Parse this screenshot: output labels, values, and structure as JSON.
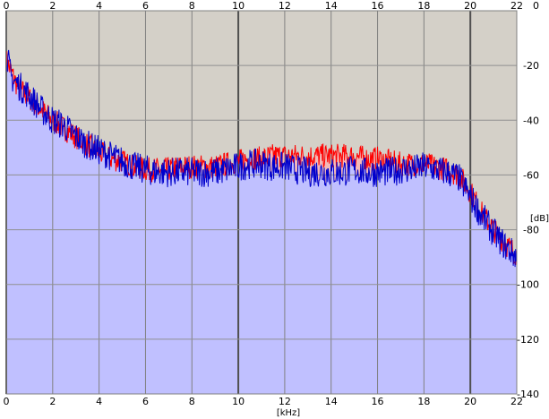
{
  "chart_data": {
    "type": "area",
    "title": "",
    "xlabel": "[kHz]",
    "ylabel": "[dB]",
    "xlim": [
      0,
      22
    ],
    "ylim": [
      -140,
      0
    ],
    "x_ticks_top": [
      "0",
      "2",
      "4",
      "6",
      "8",
      "10",
      "12",
      "14",
      "16",
      "18",
      "20",
      "22"
    ],
    "x_ticks_bottom": [
      "0",
      "2",
      "4",
      "6",
      "8",
      "10",
      "12",
      "14",
      "16",
      "18",
      "20",
      "22"
    ],
    "y_ticks": [
      "0",
      "-20",
      "-40",
      "-60",
      "-80",
      "-100",
      "-120",
      "-140"
    ],
    "grid": true,
    "background_color": "#d4d0c8",
    "series": [
      {
        "color": "#ff0000",
        "fill": "#f4b8b8",
        "x": [
          0.0,
          0.2,
          0.5,
          1.0,
          1.5,
          2.0,
          2.5,
          3.0,
          3.5,
          4.0,
          4.5,
          5.0,
          5.5,
          6.0,
          6.5,
          7.0,
          7.5,
          8.0,
          8.5,
          9.0,
          9.5,
          10.0,
          10.5,
          11.0,
          11.5,
          12.0,
          12.5,
          13.0,
          13.5,
          14.0,
          14.5,
          15.0,
          15.5,
          16.0,
          16.5,
          17.0,
          17.5,
          18.0,
          18.5,
          19.0,
          19.5,
          20.0,
          20.5,
          21.0,
          21.5,
          22.0
        ],
        "values": [
          -18,
          -22,
          -28,
          -32,
          -36,
          -40,
          -43,
          -46,
          -49,
          -52,
          -54,
          -55,
          -57,
          -58,
          -58,
          -58,
          -57,
          -57,
          -57,
          -57,
          -56,
          -55,
          -54,
          -54,
          -53,
          -53,
          -53,
          -53,
          -53,
          -53,
          -53,
          -53,
          -54,
          -54,
          -55,
          -56,
          -56,
          -56,
          -57,
          -58,
          -60,
          -66,
          -74,
          -80,
          -85,
          -89
        ]
      },
      {
        "color": "#0000cc",
        "fill": "#c0c0ff",
        "x": [
          0.0,
          0.2,
          0.5,
          1.0,
          1.5,
          2.0,
          2.5,
          3.0,
          3.5,
          4.0,
          4.5,
          5.0,
          5.5,
          6.0,
          6.5,
          7.0,
          7.5,
          8.0,
          8.5,
          9.0,
          9.5,
          10.0,
          10.5,
          11.0,
          11.5,
          12.0,
          12.5,
          13.0,
          13.5,
          14.0,
          14.5,
          15.0,
          15.5,
          16.0,
          16.5,
          17.0,
          17.5,
          18.0,
          18.5,
          19.0,
          19.5,
          20.0,
          20.5,
          21.0,
          21.5,
          22.0
        ],
        "values": [
          -15,
          -24,
          -27,
          -31,
          -36,
          -40,
          -42,
          -46,
          -49,
          -51,
          -53,
          -55,
          -57,
          -58,
          -59,
          -59,
          -59,
          -59,
          -59,
          -59,
          -58,
          -57,
          -56,
          -56,
          -57,
          -57,
          -58,
          -59,
          -59,
          -59,
          -59,
          -58,
          -59,
          -59,
          -59,
          -58,
          -58,
          -57,
          -58,
          -59,
          -61,
          -68,
          -75,
          -81,
          -86,
          -90
        ]
      }
    ]
  }
}
